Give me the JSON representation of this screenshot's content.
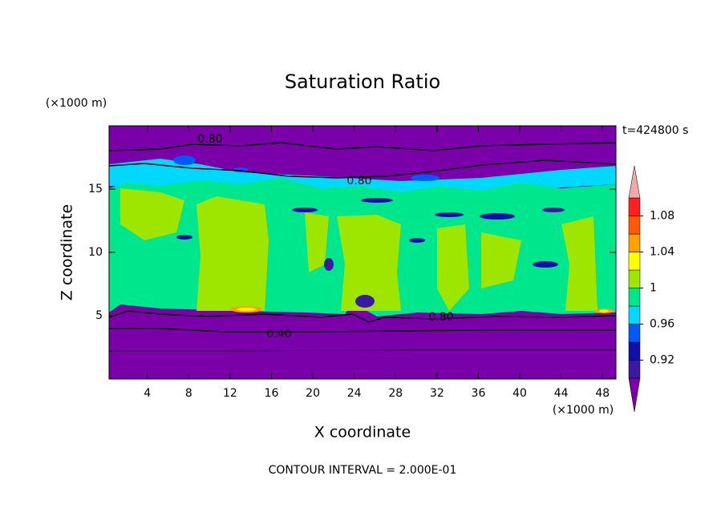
{
  "chart_data": {
    "type": "contour",
    "title": "Saturation Ratio",
    "xlabel": "X coordinate",
    "ylabel": "Z coordinate",
    "x_unit": "(×1000 m)",
    "y_unit": "(×1000 m)",
    "time_label": "t=424800 s",
    "footer": "CONTOUR INTERVAL = 2.000E-01",
    "xlim": [
      0.3,
      49.3
    ],
    "xticks": [
      4,
      8,
      12,
      16,
      20,
      24,
      28,
      32,
      36,
      40,
      44,
      48
    ],
    "ylim": [
      0,
      20
    ],
    "yticks": [
      5,
      10,
      15
    ],
    "clim": [
      0.9,
      1.1
    ],
    "colors": [
      "#3a1a9e",
      "#1010a8",
      "#0058ff",
      "#00d8ff",
      "#00e68c",
      "#9ee600",
      "#ffff00",
      "#ffa000",
      "#ff5a00",
      "#ff2020"
    ],
    "under_color": "#7a00aa",
    "over_color": "#f0a8a8",
    "cticks": [
      0.92,
      0.96,
      1,
      1.04,
      1.08
    ],
    "contour_labels": [
      {
        "value": 0.8,
        "label": "0.80"
      },
      {
        "value": 0.8,
        "label": "0.80"
      },
      {
        "value": 0.8,
        "label": "0.80"
      },
      {
        "value": 0.4,
        "label": "0.40"
      }
    ]
  }
}
